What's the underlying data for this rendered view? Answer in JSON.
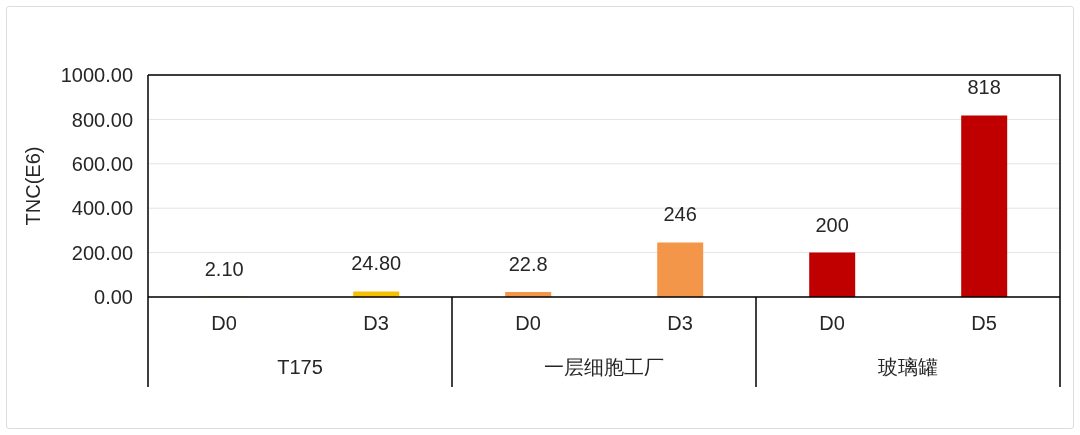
{
  "chart_data": {
    "type": "bar",
    "ylabel": "TNC(E6)",
    "categories": [
      "D0",
      "D3",
      "D0",
      "D3",
      "D0",
      "D5"
    ],
    "values": [
      2.1,
      24.8,
      22.8,
      246,
      200,
      818
    ],
    "colors": [
      "#f5c000",
      "#f5c000",
      "#f4964a",
      "#f4964a",
      "#c00000",
      "#c00000"
    ],
    "value_labels": [
      "2.10",
      "24.80",
      "22.8",
      "246",
      "200",
      "818"
    ],
    "ylim": [
      0,
      1000
    ],
    "yticks": [
      {
        "value": 0,
        "label": "0.00"
      },
      {
        "value": 200,
        "label": "200.00"
      },
      {
        "value": 400,
        "label": "400.00"
      },
      {
        "value": 600,
        "label": "600.00"
      },
      {
        "value": 800,
        "label": "800.00"
      },
      {
        "value": 1000,
        "label": "1000.00"
      }
    ],
    "grid": "y",
    "annotations": [
      "T175",
      "一层细胞工厂",
      "玻璃罐"
    ]
  }
}
